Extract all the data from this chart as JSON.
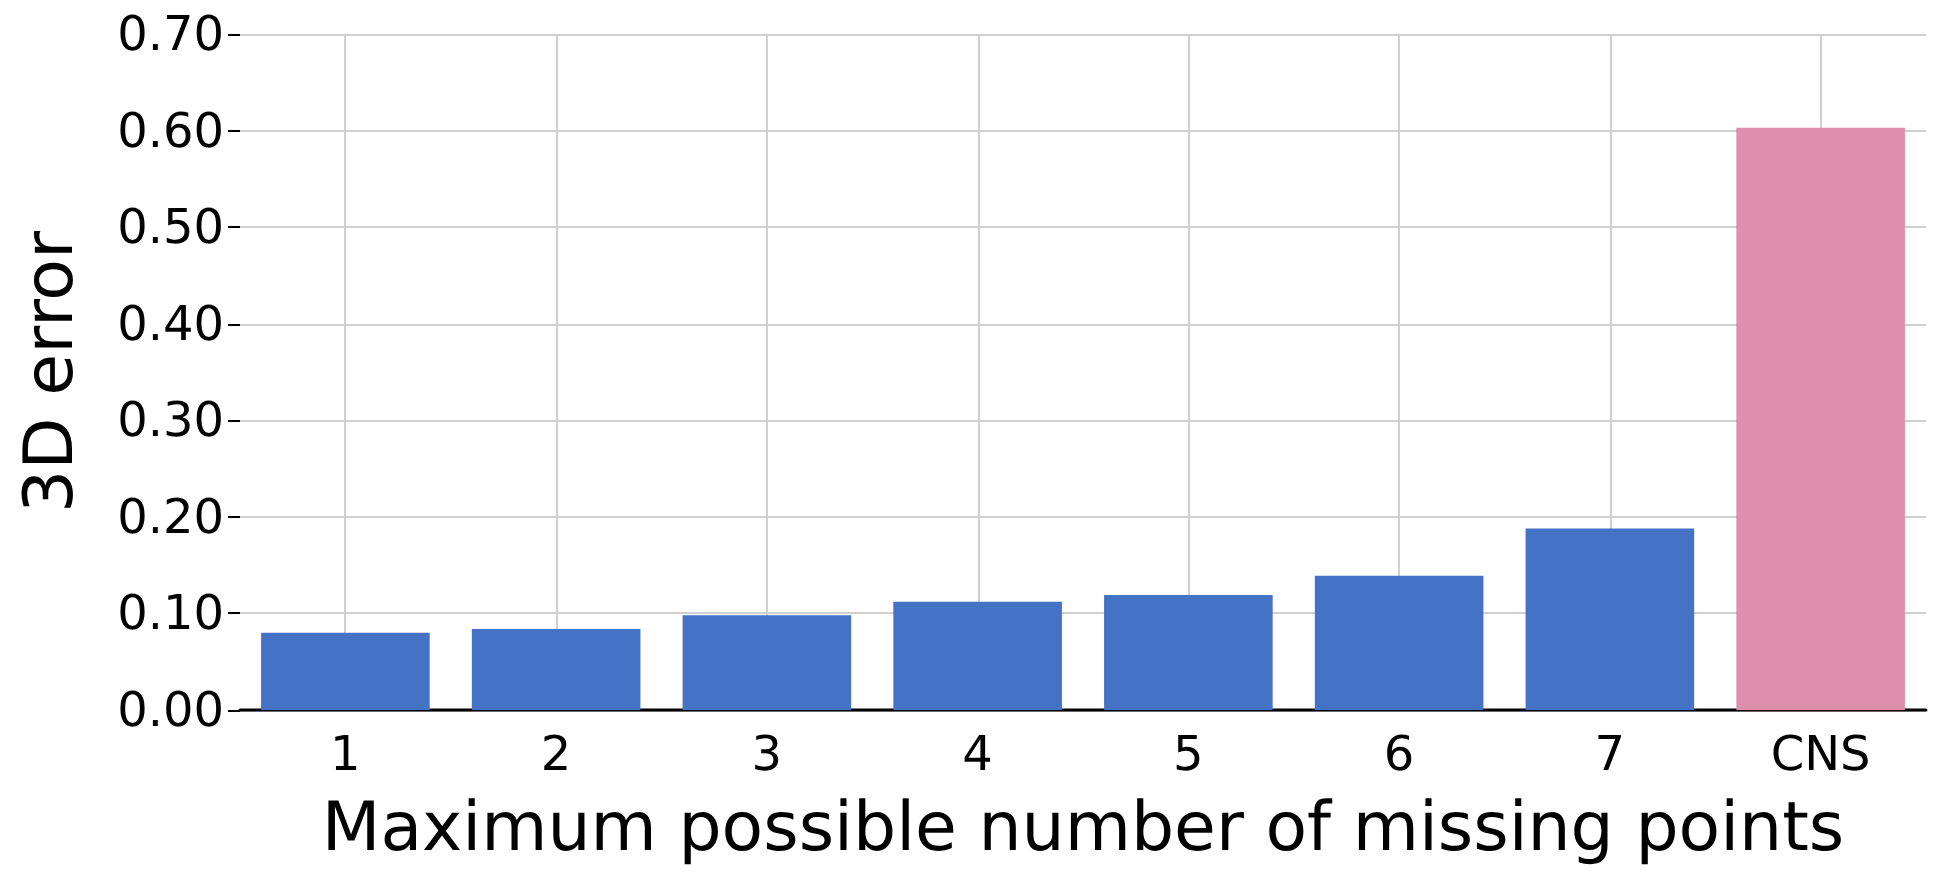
{
  "chart_data": {
    "type": "bar",
    "xlabel": "Maximum possible number of missing points",
    "ylabel": "3D error",
    "categories": [
      "1",
      "2",
      "3",
      "4",
      "5",
      "6",
      "7",
      "CNS"
    ],
    "values": [
      0.08,
      0.084,
      0.098,
      0.112,
      0.119,
      0.139,
      0.188,
      0.603
    ],
    "colors": [
      "#4472c4",
      "#4472c4",
      "#4472c4",
      "#4472c4",
      "#4472c4",
      "#4472c4",
      "#4472c4",
      "#dd8fab"
    ],
    "ylim": [
      0,
      0.7
    ],
    "yticks": [
      {
        "value": 0,
        "label": "0.00"
      },
      {
        "value": 0.1,
        "label": "0.10"
      },
      {
        "value": 0.2,
        "label": "0.20"
      },
      {
        "value": 0.3,
        "label": "0.30"
      },
      {
        "value": 0.4,
        "label": "0.40"
      },
      {
        "value": 0.5,
        "label": "0.50"
      },
      {
        "value": 0.6,
        "label": "0.60"
      },
      {
        "value": 0.7,
        "label": "0.70"
      }
    ],
    "grid": true
  }
}
